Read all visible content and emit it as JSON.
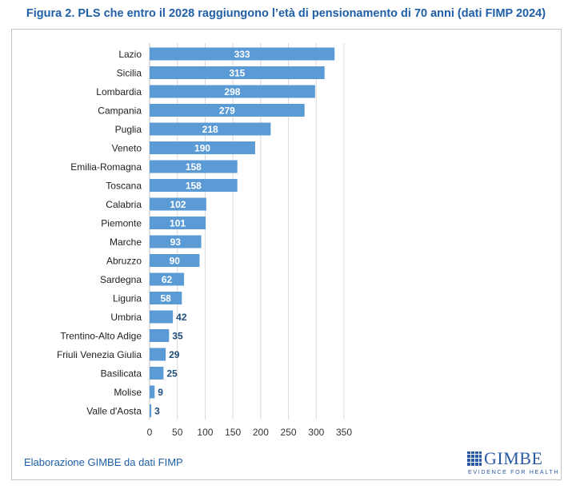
{
  "chart_data": {
    "type": "bar",
    "orientation": "horizontal",
    "title": "Figura 2. PLS che entro il 2028 raggiungono l’età di pensionamento di 70 anni (dati FIMP 2024)",
    "categories": [
      "Lazio",
      "Sicilia",
      "Lombardia",
      "Campania",
      "Puglia",
      "Veneto",
      "Emilia-Romagna",
      "Toscana",
      "Calabria",
      "Piemonte",
      "Marche",
      "Abruzzo",
      "Sardegna",
      "Liguria",
      "Umbria",
      "Trentino-Alto Adige",
      "Friuli Venezia Giulia",
      "Basilicata",
      "Molise",
      "Valle d'Aosta"
    ],
    "values": [
      333,
      315,
      298,
      279,
      218,
      190,
      158,
      158,
      102,
      101,
      93,
      90,
      62,
      58,
      42,
      35,
      29,
      25,
      9,
      3
    ],
    "xlim": [
      0,
      350
    ],
    "xticks": [
      0,
      50,
      100,
      150,
      200,
      250,
      300,
      350
    ],
    "grid": "vertical",
    "data_labels": true,
    "bar_color": "#5b9bd5"
  },
  "source_note": "Elaborazione GIMBE da dati FIMP",
  "logo": {
    "name": "GIMBE",
    "tagline": "EVIDENCE FOR HEALTH",
    "color": "#2a5aa6"
  }
}
